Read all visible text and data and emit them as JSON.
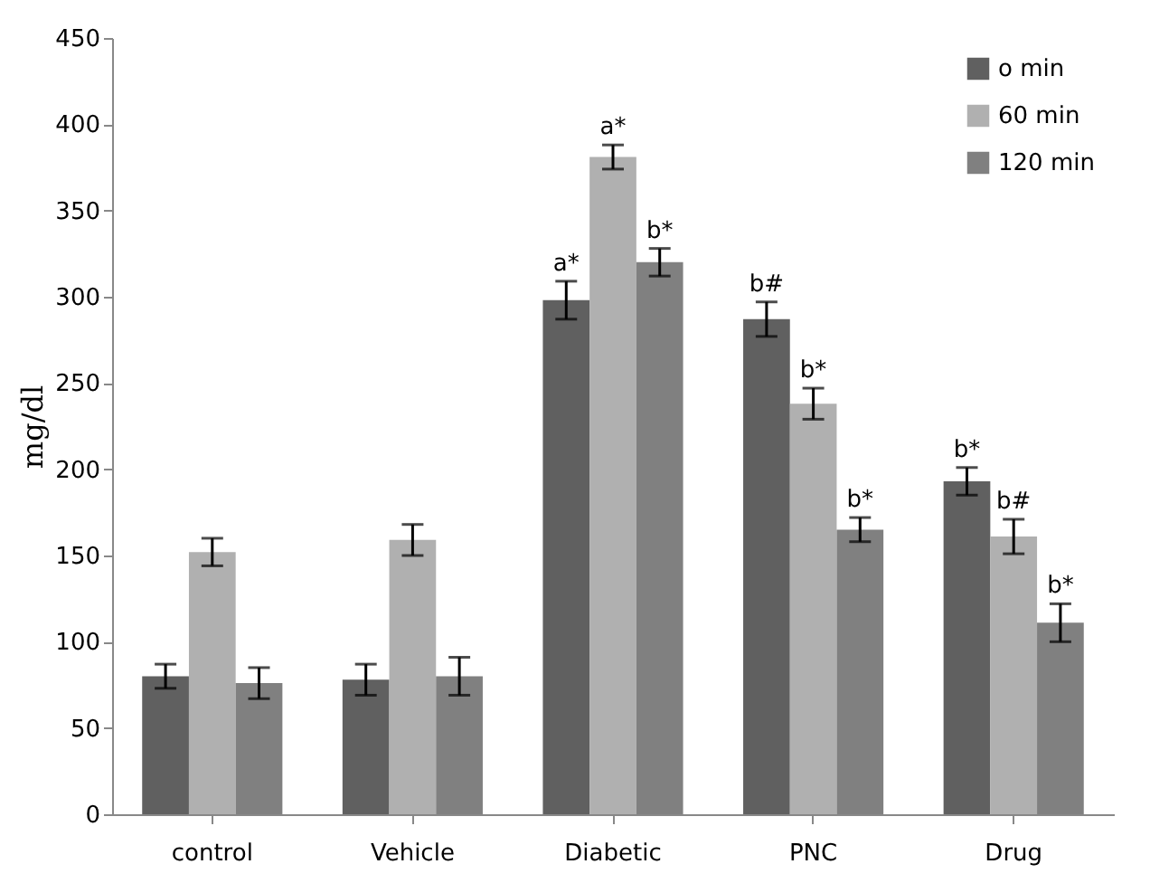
{
  "chart_data": {
    "type": "bar",
    "ylabel": "mg/dl",
    "categories": [
      "control",
      "Vehicle",
      "Diabetic",
      "PNC",
      "Drug"
    ],
    "series": [
      {
        "name": "o min",
        "color": "#606060",
        "values": [
          80,
          78,
          298,
          287,
          193
        ],
        "errors": [
          7,
          9,
          11,
          10,
          8
        ],
        "value_labels": [
          null,
          null,
          "a*",
          "b#",
          "b*"
        ]
      },
      {
        "name": "60 min",
        "color": "#b0b0b0",
        "values": [
          152,
          159,
          381,
          238,
          161
        ],
        "errors": [
          8,
          9,
          7,
          9,
          10
        ],
        "value_labels": [
          null,
          null,
          "a*",
          "b*",
          "b#"
        ]
      },
      {
        "name": "120 min",
        "color": "#808080",
        "values": [
          76,
          80,
          320,
          165,
          111
        ],
        "errors": [
          9,
          11,
          8,
          7,
          11
        ],
        "value_labels": [
          null,
          null,
          "b*",
          "b*",
          "b*"
        ]
      }
    ],
    "ylim": [
      0,
      450
    ],
    "yticks": [
      0,
      50,
      100,
      150,
      200,
      250,
      300,
      350,
      400,
      450
    ],
    "grid": false,
    "legend": "top right"
  }
}
